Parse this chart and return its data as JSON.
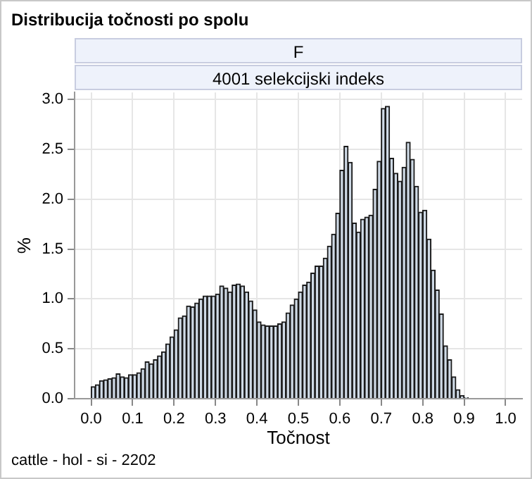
{
  "chart_data": {
    "type": "histogram",
    "title": "Distribucija točnosti po spolu",
    "xlabel": "Točnost",
    "ylabel": "%",
    "annotations": [
      "F",
      "4001 selekcijski indeks",
      "cattle - hol - si - 2202"
    ],
    "bins": [
      0,
      0.01,
      0.02,
      0.03,
      0.04,
      0.05,
      0.06,
      0.07,
      0.08,
      0.09,
      0.1,
      0.11,
      0.12,
      0.13,
      0.14,
      0.15,
      0.16,
      0.17,
      0.18,
      0.19,
      0.2,
      0.21,
      0.22,
      0.23,
      0.24,
      0.25,
      0.26,
      0.27,
      0.28,
      0.29,
      0.3,
      0.31,
      0.32,
      0.33,
      0.34,
      0.35,
      0.36,
      0.37,
      0.38,
      0.39,
      0.4,
      0.41,
      0.42,
      0.43,
      0.44,
      0.45,
      0.46,
      0.47,
      0.48,
      0.49,
      0.5,
      0.51,
      0.52,
      0.53,
      0.54,
      0.55,
      0.56,
      0.57,
      0.58,
      0.59,
      0.6,
      0.61,
      0.62,
      0.63,
      0.64,
      0.65,
      0.66,
      0.67,
      0.68,
      0.69,
      0.7,
      0.71,
      0.72,
      0.73,
      0.74,
      0.75,
      0.76,
      0.77,
      0.78,
      0.79,
      0.8,
      0.81,
      0.82,
      0.83,
      0.84,
      0.85,
      0.86,
      0.87,
      0.88,
      0.89,
      0.9,
      0.91,
      0.92,
      0.93,
      0.94,
      0.95,
      0.96,
      0.97,
      0.98,
      0.99,
      1
    ],
    "values": [
      0.12,
      0.14,
      0.18,
      0.19,
      0.2,
      0.21,
      0.25,
      0.22,
      0.21,
      0.24,
      0.24,
      0.26,
      0.3,
      0.37,
      0.35,
      0.39,
      0.43,
      0.47,
      0.55,
      0.62,
      0.69,
      0.81,
      0.83,
      0.93,
      0.92,
      0.96,
      1.0,
      1.03,
      1.03,
      1.03,
      1.05,
      1.13,
      1.11,
      1.07,
      1.14,
      1.15,
      1.13,
      1.07,
      0.98,
      0.89,
      0.77,
      0.74,
      0.73,
      0.73,
      0.73,
      0.75,
      0.77,
      0.86,
      0.94,
      1.0,
      1.07,
      1.14,
      1.17,
      1.26,
      1.33,
      1.33,
      1.41,
      1.53,
      1.65,
      1.86,
      2.29,
      2.53,
      2.37,
      1.76,
      1.67,
      1.8,
      1.82,
      1.84,
      2.1,
      2.38,
      2.91,
      2.93,
      2.41,
      2.26,
      2.18,
      2.32,
      2.57,
      2.4,
      2.13,
      1.87,
      1.89,
      1.6,
      1.29,
      1.09,
      0.85,
      0.53,
      0.39,
      0.22,
      0.09,
      0.03,
      0.01,
      0,
      0,
      0,
      0,
      0,
      0,
      0,
      0,
      0
    ],
    "color": "#cfdae6",
    "xlim": [
      -0.04,
      1.04
    ],
    "ylim": [
      0,
      3.07
    ],
    "xticks": [
      {
        "value": 0,
        "label": "0.0"
      },
      {
        "value": 0.1,
        "label": "0.1"
      },
      {
        "value": 0.2,
        "label": "0.2"
      },
      {
        "value": 0.3,
        "label": "0.3"
      },
      {
        "value": 0.4,
        "label": "0.4"
      },
      {
        "value": 0.5,
        "label": "0.5"
      },
      {
        "value": 0.6,
        "label": "0.6"
      },
      {
        "value": 0.7,
        "label": "0.7"
      },
      {
        "value": 0.8,
        "label": "0.8"
      },
      {
        "value": 0.9,
        "label": "0.9"
      },
      {
        "value": 1,
        "label": "1.0"
      }
    ],
    "yticks": [
      {
        "value": 0,
        "label": "0.0"
      },
      {
        "value": 0.5,
        "label": "0.5"
      },
      {
        "value": 1,
        "label": "1.0"
      },
      {
        "value": 1.5,
        "label": "1.5"
      },
      {
        "value": 2,
        "label": "2.0"
      },
      {
        "value": 2.5,
        "label": "2.5"
      },
      {
        "value": 3,
        "label": "3.0"
      }
    ],
    "grid": true
  }
}
